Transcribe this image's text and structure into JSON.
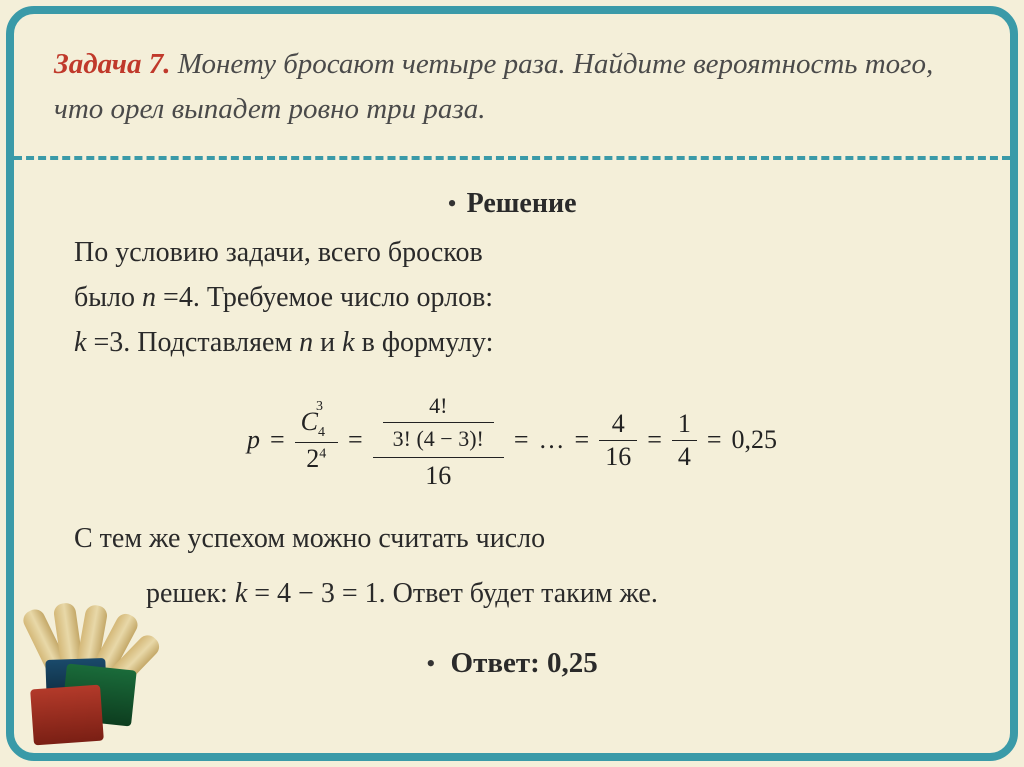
{
  "header": {
    "label": "Задача 7.",
    "text": " Монету бросают четыре раза. Найдите вероятность того, что орел выпадет ровно три раза."
  },
  "solution": {
    "title": "Решение",
    "p1a": "По условию задачи, всего бросков",
    "p1b_pre": "было ",
    "p1b_var": "n ",
    "p1b_eq": "=4. Требуемое число орлов:",
    "p1c_var": "k ",
    "p1c_eq": "=3. Подставляем ",
    "p1c_n": "n ",
    "p1c_and": "и ",
    "p1c_k": "k ",
    "p1c_end": "в формулу:"
  },
  "formula": {
    "p": "p",
    "eq": "=",
    "c_top": "C",
    "c_sup": "3",
    "c_sub": "4",
    "den1": "2",
    "den1_sup": "4",
    "num2": "4!",
    "den2": "3! (4 − 3)!",
    "den2_outer": "16",
    "dots": "…",
    "f3_num": "4",
    "f3_den": "16",
    "f4_num": "1",
    "f4_den": "4",
    "result": "0,25"
  },
  "note": {
    "l1": "С тем же успехом можно считать число",
    "l2_pre": "решек: ",
    "l2_var": "k ",
    "l2_eq": "= 4 − 3 = 1. Ответ будет таким же."
  },
  "answer": {
    "label": "Ответ:",
    "value": " 0,25"
  },
  "style": {
    "bg": "#f4efd9",
    "border": "#3a9aa8",
    "accent": "#c0392b",
    "text": "#2a2a2a",
    "header_fontsize": 29,
    "body_fontsize": 28,
    "formula_fontsize": 26
  }
}
